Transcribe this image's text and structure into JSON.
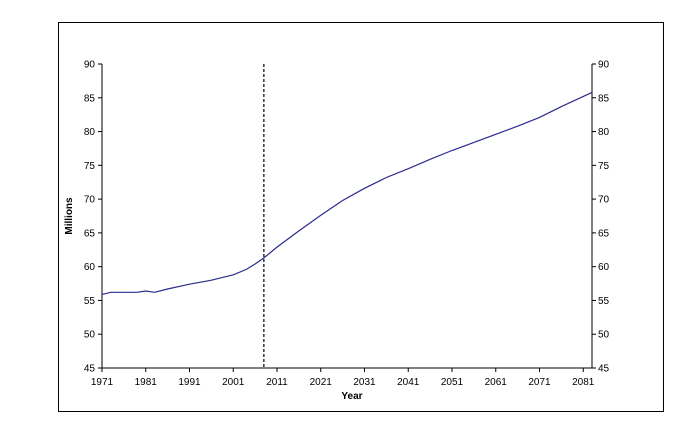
{
  "chart_data": {
    "type": "line",
    "title": "",
    "xlabel": "Year",
    "ylabel": "Millions",
    "xlim": [
      1971,
      2083
    ],
    "ylim": [
      45,
      90
    ],
    "x_ticks": [
      1971,
      1981,
      1991,
      2001,
      2011,
      2021,
      2031,
      2041,
      2051,
      2061,
      2071,
      2081
    ],
    "y_ticks": [
      45,
      50,
      55,
      60,
      65,
      70,
      75,
      80,
      85,
      90
    ],
    "secondary_y_axis": true,
    "grid": false,
    "legend": "none",
    "vertical_reference_line": {
      "x": 2008,
      "style": "dashed",
      "color": "#000000"
    },
    "line_color": "#2b2b8c",
    "series": [
      {
        "x": [
          1971,
          1973,
          1976,
          1979,
          1981,
          1983,
          1986,
          1991,
          1996,
          2001,
          2004,
          2006,
          2008,
          2011,
          2016,
          2021,
          2026,
          2031,
          2036,
          2041,
          2046,
          2051,
          2056,
          2061,
          2066,
          2071,
          2076,
          2081,
          2083
        ],
        "y": [
          55.9,
          56.2,
          56.2,
          56.2,
          56.4,
          56.2,
          56.7,
          57.4,
          58.0,
          58.8,
          59.6,
          60.4,
          61.3,
          62.9,
          65.3,
          67.6,
          69.8,
          71.6,
          73.2,
          74.5,
          75.9,
          77.2,
          78.4,
          79.6,
          80.8,
          82.1,
          83.7,
          85.2,
          85.8
        ]
      }
    ]
  }
}
